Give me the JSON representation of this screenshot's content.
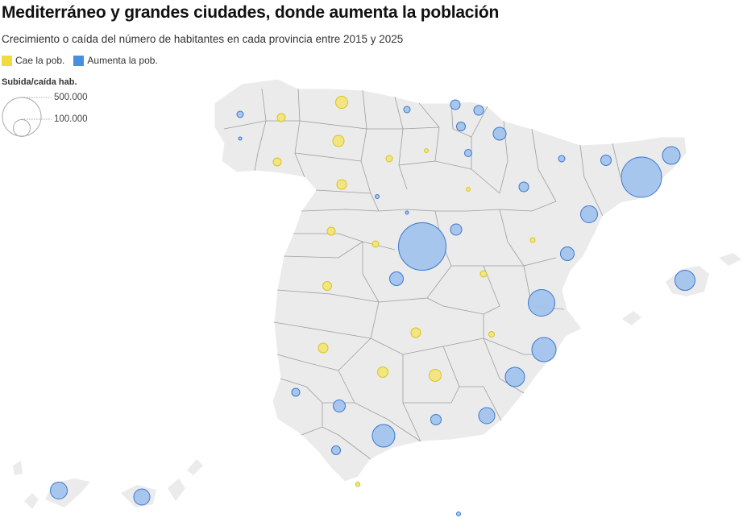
{
  "title": "Mediterráneo y grandes ciudades, donde aumenta la población",
  "subtitle": "Crecimiento o caída del número de habitantes en cada provincia entre 2015 y 2025",
  "legend": {
    "decrease_label": "Cae la pob.",
    "increase_label": "Aumenta la pob.",
    "decrease_color": "#f0dc3c",
    "increase_color": "#4a8ee0"
  },
  "size_legend": {
    "title": "Subida/caída hab.",
    "large_label": "500.000",
    "small_label": "100.000",
    "large_value": 500000,
    "small_value": 100000
  },
  "colors": {
    "land": "#ebebeb",
    "borders": "#9a9a9a",
    "increase_fill": "#a3c4ee",
    "increase_stroke": "#3b78cc",
    "decrease_fill": "#f3e57a",
    "decrease_stroke": "#d8c41c"
  },
  "symbol_map_data": {
    "type": "proportional-symbol-map",
    "region": "España, provincias"
  }
}
